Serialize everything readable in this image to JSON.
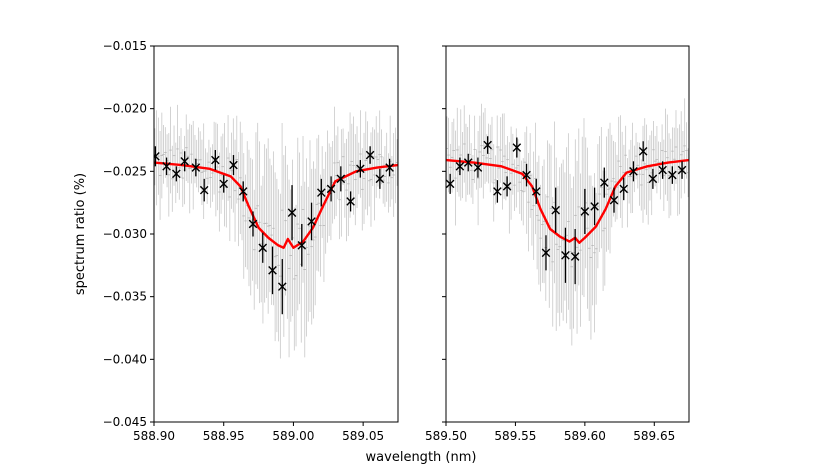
{
  "chart_data": {
    "type": "scatter",
    "ylabel": "spectrum ratio (%)",
    "xlabel": "wavelength (nm)",
    "ylim": [
      -0.045,
      -0.015
    ],
    "yticks": [
      -0.015,
      -0.02,
      -0.025,
      -0.03,
      -0.035,
      -0.04,
      -0.045
    ],
    "ytick_labels": [
      "−0.015",
      "−0.020",
      "−0.025",
      "−0.030",
      "−0.035",
      "−0.040",
      "−0.045"
    ],
    "colors": {
      "model": "#ff0000",
      "binned": "#000000",
      "raw": "#c8c8c8"
    },
    "panels": [
      {
        "xlim": [
          588.9,
          589.075
        ],
        "xticks": [
          588.9,
          588.95,
          589.0,
          589.05
        ],
        "xtick_labels": [
          "588.90",
          "588.95",
          "589.00",
          "589.05"
        ],
        "binned_points": [
          {
            "x": 588.901,
            "y": -0.0238,
            "err": 0.0008
          },
          {
            "x": 588.909,
            "y": -0.0246,
            "err": 0.0007
          },
          {
            "x": 588.916,
            "y": -0.0252,
            "err": 0.0006
          },
          {
            "x": 588.922,
            "y": -0.0242,
            "err": 0.0008
          },
          {
            "x": 588.93,
            "y": -0.0247,
            "err": 0.0007
          },
          {
            "x": 588.936,
            "y": -0.0265,
            "err": 0.0009
          },
          {
            "x": 588.944,
            "y": -0.0241,
            "err": 0.0008
          },
          {
            "x": 588.95,
            "y": -0.026,
            "err": 0.0007
          },
          {
            "x": 588.957,
            "y": -0.0245,
            "err": 0.0008
          },
          {
            "x": 588.964,
            "y": -0.0266,
            "err": 0.0008
          },
          {
            "x": 588.971,
            "y": -0.0292,
            "err": 0.001
          },
          {
            "x": 588.978,
            "y": -0.0311,
            "err": 0.0012
          },
          {
            "x": 588.985,
            "y": -0.0329,
            "err": 0.0019
          },
          {
            "x": 588.992,
            "y": -0.0342,
            "err": 0.0022
          },
          {
            "x": 588.999,
            "y": -0.0283,
            "err": 0.0022
          },
          {
            "x": 589.006,
            "y": -0.0309,
            "err": 0.0017
          },
          {
            "x": 589.013,
            "y": -0.029,
            "err": 0.0015
          },
          {
            "x": 589.02,
            "y": -0.0267,
            "err": 0.0011
          },
          {
            "x": 589.027,
            "y": -0.0264,
            "err": 0.001
          },
          {
            "x": 589.034,
            "y": -0.0256,
            "err": 0.001
          },
          {
            "x": 589.041,
            "y": -0.0274,
            "err": 0.0008
          },
          {
            "x": 589.048,
            "y": -0.0248,
            "err": 0.0007
          },
          {
            "x": 589.055,
            "y": -0.0237,
            "err": 0.0007
          },
          {
            "x": 589.062,
            "y": -0.0256,
            "err": 0.0008
          },
          {
            "x": 589.069,
            "y": -0.0247,
            "err": 0.0007
          }
        ],
        "model_curve": {
          "x": [
            588.9,
            588.92,
            588.94,
            588.955,
            588.962,
            588.968,
            588.975,
            588.982,
            588.989,
            588.993,
            588.996,
            589.0,
            589.007,
            589.014,
            589.022,
            589.03,
            589.045,
            589.06,
            589.075
          ],
          "y": [
            -0.0243,
            -0.0245,
            -0.0248,
            -0.0254,
            -0.0262,
            -0.0278,
            -0.0295,
            -0.0303,
            -0.0309,
            -0.0311,
            -0.0304,
            -0.0311,
            -0.0306,
            -0.0295,
            -0.0276,
            -0.0258,
            -0.025,
            -0.0247,
            -0.0245
          ]
        }
      },
      {
        "xlim": [
          589.5,
          589.675
        ],
        "xticks": [
          589.5,
          589.55,
          589.6,
          589.65
        ],
        "xtick_labels": [
          "589.50",
          "589.55",
          "589.60",
          "589.65"
        ],
        "binned_points": [
          {
            "x": 589.503,
            "y": -0.026,
            "err": 0.0008
          },
          {
            "x": 589.51,
            "y": -0.0246,
            "err": 0.0007
          },
          {
            "x": 589.516,
            "y": -0.0243,
            "err": 0.0007
          },
          {
            "x": 589.523,
            "y": -0.0247,
            "err": 0.0008
          },
          {
            "x": 589.53,
            "y": -0.0229,
            "err": 0.0007
          },
          {
            "x": 589.537,
            "y": -0.0266,
            "err": 0.0009
          },
          {
            "x": 589.544,
            "y": -0.0262,
            "err": 0.0008
          },
          {
            "x": 589.551,
            "y": -0.0231,
            "err": 0.0008
          },
          {
            "x": 589.558,
            "y": -0.0253,
            "err": 0.0009
          },
          {
            "x": 589.565,
            "y": -0.0266,
            "err": 0.001
          },
          {
            "x": 589.572,
            "y": -0.0315,
            "err": 0.0014
          },
          {
            "x": 589.579,
            "y": -0.0281,
            "err": 0.0018
          },
          {
            "x": 589.586,
            "y": -0.0317,
            "err": 0.0022
          },
          {
            "x": 589.593,
            "y": -0.0318,
            "err": 0.0022
          },
          {
            "x": 589.6,
            "y": -0.0282,
            "err": 0.0018
          },
          {
            "x": 589.607,
            "y": -0.0278,
            "err": 0.0015
          },
          {
            "x": 589.614,
            "y": -0.0259,
            "err": 0.0012
          },
          {
            "x": 589.621,
            "y": -0.0273,
            "err": 0.001
          },
          {
            "x": 589.628,
            "y": -0.0264,
            "err": 0.0009
          },
          {
            "x": 589.635,
            "y": -0.025,
            "err": 0.0008
          },
          {
            "x": 589.642,
            "y": -0.0234,
            "err": 0.0008
          },
          {
            "x": 589.649,
            "y": -0.0256,
            "err": 0.0008
          },
          {
            "x": 589.656,
            "y": -0.0249,
            "err": 0.0007
          },
          {
            "x": 589.663,
            "y": -0.0253,
            "err": 0.0007
          },
          {
            "x": 589.67,
            "y": -0.0249,
            "err": 0.0007
          }
        ],
        "model_curve": {
          "x": [
            589.5,
            589.52,
            589.54,
            589.555,
            589.562,
            589.568,
            589.575,
            589.582,
            589.589,
            589.593,
            589.596,
            589.6,
            589.608,
            589.615,
            589.622,
            589.63,
            589.645,
            589.66,
            589.675
          ],
          "y": [
            -0.0241,
            -0.0243,
            -0.0246,
            -0.0252,
            -0.0262,
            -0.028,
            -0.0296,
            -0.0302,
            -0.0306,
            -0.0303,
            -0.0307,
            -0.0303,
            -0.0294,
            -0.028,
            -0.0262,
            -0.0251,
            -0.0246,
            -0.0243,
            -0.0241
          ]
        }
      }
    ]
  }
}
